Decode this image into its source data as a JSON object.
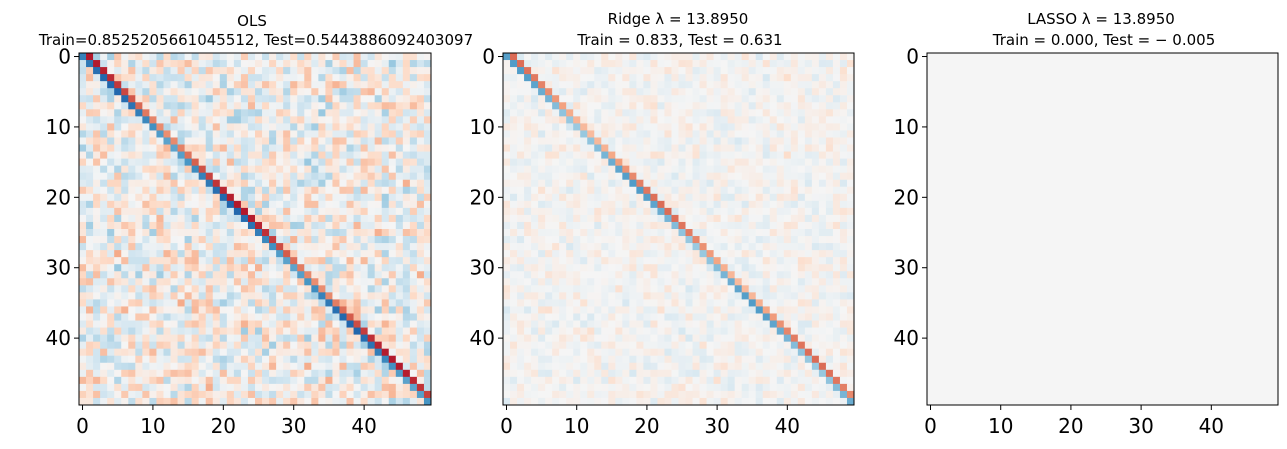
{
  "chart_data": [
    {
      "type": "heatmap",
      "title_line1": "OLS",
      "title_line2": "Train=0.8525205661045512, Test=0.5443886092403097",
      "size": 50,
      "xticks": [
        0,
        10,
        20,
        30,
        40
      ],
      "yticks": [
        0,
        10,
        20,
        30,
        40
      ],
      "x_tick_labels": [
        "0",
        "10",
        "20",
        "30",
        "40"
      ],
      "y_tick_labels": [
        "0",
        "10",
        "20",
        "30",
        "40"
      ],
      "colormap": "RdBu",
      "color_range": [
        -1,
        1
      ],
      "diagonal": {
        "main": -1.0,
        "upper": 1.0,
        "upper_first": 1.0,
        "upper_last": 0.9
      },
      "noise": 0.22,
      "seed": 7
    },
    {
      "type": "heatmap",
      "title_line1": "Ridge λ = 13.8950",
      "title_line2": "Train = 0.833, Test = 0.631",
      "size": 50,
      "xticks": [
        0,
        10,
        20,
        30,
        40
      ],
      "yticks": [
        0,
        10,
        20,
        30,
        40
      ],
      "x_tick_labels": [
        "0",
        "10",
        "20",
        "30",
        "40"
      ],
      "y_tick_labels": [
        "0",
        "10",
        "20",
        "30",
        "40"
      ],
      "colormap": "RdBu",
      "color_range": [
        -1,
        1
      ],
      "diagonal": {
        "main": -0.55,
        "upper": 0.55
      },
      "noise": 0.07,
      "seed": 19
    },
    {
      "type": "heatmap",
      "title_line1": "LASSO λ = 13.8950",
      "title_line2": "Train = 0.000, Test = − 0.005",
      "size": 50,
      "xticks": [
        0,
        10,
        20,
        30,
        40
      ],
      "yticks": [
        0,
        10,
        20,
        30,
        40
      ],
      "x_tick_labels": [
        "0",
        "10",
        "20",
        "30",
        "40"
      ],
      "y_tick_labels": [
        "0",
        "10",
        "20",
        "30",
        "40"
      ],
      "colormap": "RdBu",
      "color_range": [
        -1,
        1
      ],
      "diagonal": {
        "main": 0,
        "upper": 0
      },
      "noise": 0,
      "seed": 1
    }
  ],
  "colors": {
    "neutral": "#f5f5f5",
    "red_strong": "#d6604d",
    "blue_strong": "#4393c3"
  }
}
